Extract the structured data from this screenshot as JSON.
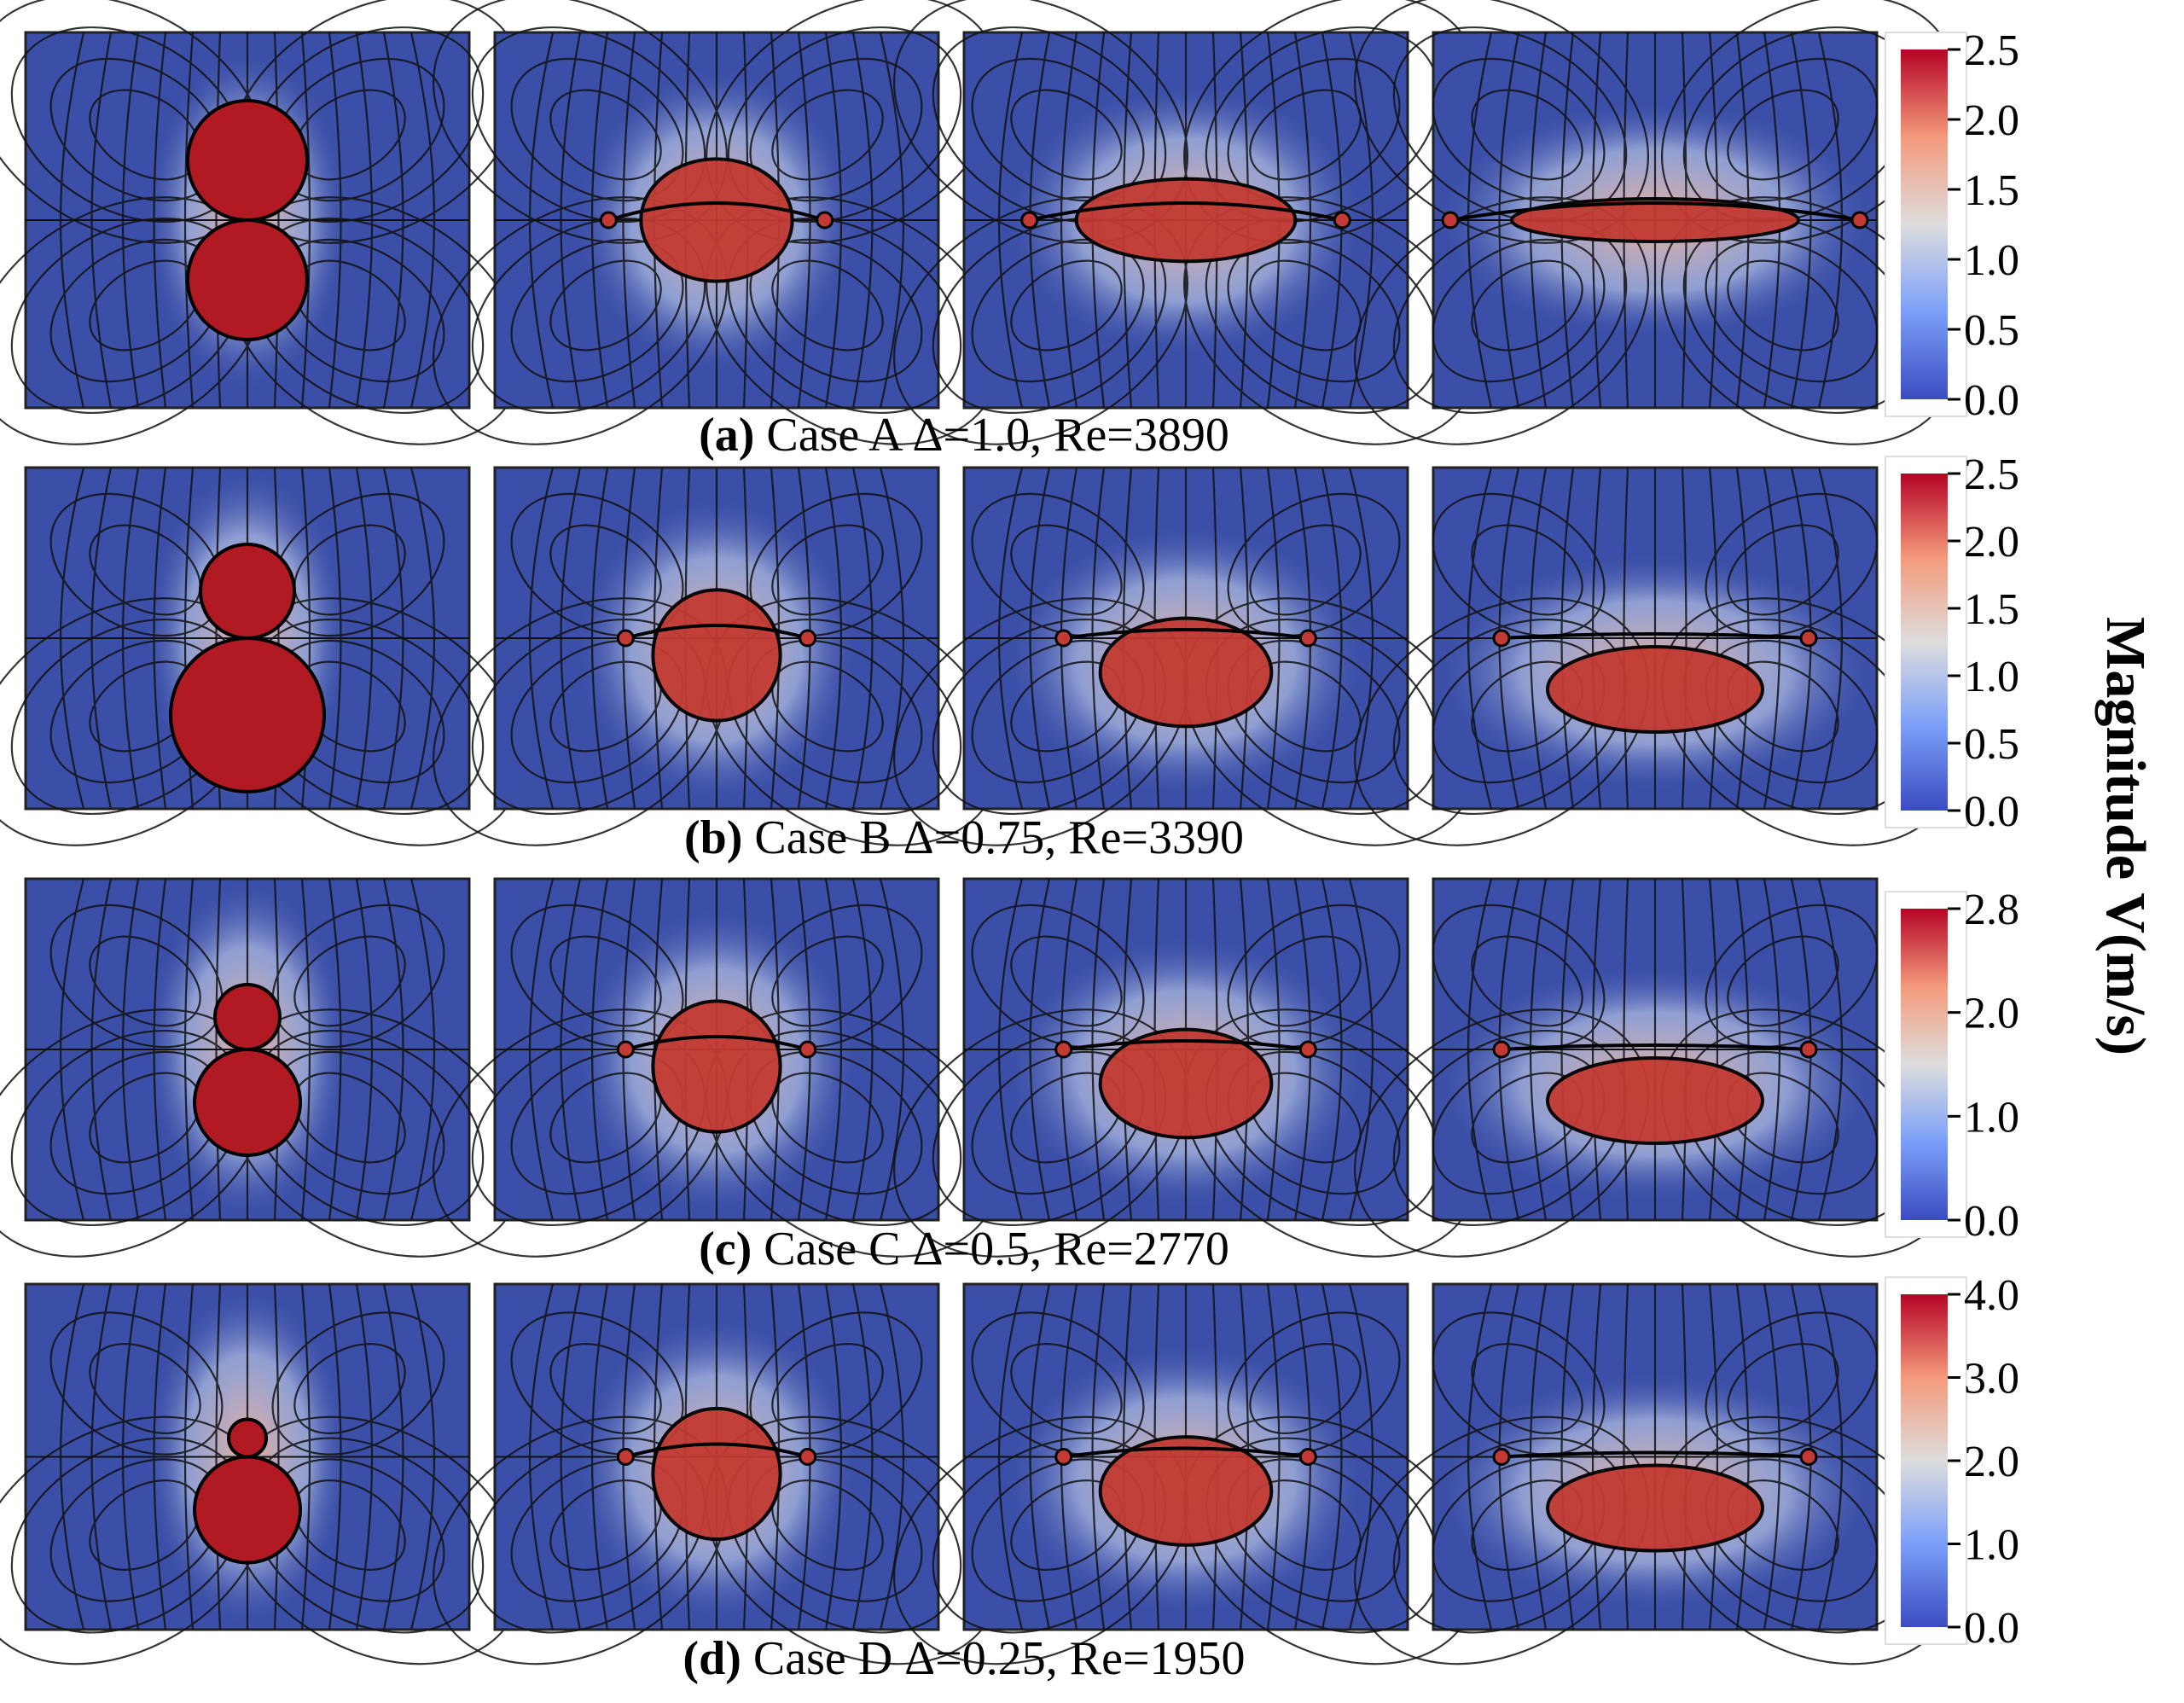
{
  "colorbar_title": "Magnitude V(m/s)",
  "colors": {
    "background_field": "#3b4fa8",
    "low": "#3a4cc0",
    "mid": "#dddddd",
    "high": "#b40426",
    "streamline": "#111111",
    "interface": "#000000"
  },
  "rows": [
    {
      "label": "(a)",
      "caption": "Case A Δ=1.0, Re=3890",
      "colorbar_ticks": [
        "2.5",
        "2.0",
        "1.5",
        "1.0",
        "0.5",
        "0.0"
      ],
      "vmax": 2.5,
      "bubble_shape": "symmetric"
    },
    {
      "label": "(b)",
      "caption": "Case B Δ=0.75, Re=3390",
      "colorbar_ticks": [
        "2.5",
        "2.0",
        "1.5",
        "1.0",
        "0.5",
        "0.0"
      ],
      "vmax": 2.5,
      "bubble_shape": "smaller-top"
    },
    {
      "label": "(c)",
      "caption": "Case C Δ=0.5, Re=2770",
      "colorbar_ticks": [
        "2.8",
        "2.0",
        "1.0",
        "0.0"
      ],
      "vmax": 2.8,
      "bubble_shape": "small-top"
    },
    {
      "label": "(d)",
      "caption": "Case D Δ=0.25, Re=1950",
      "colorbar_ticks": [
        "4.0",
        "3.0",
        "2.0",
        "1.0",
        "0.0"
      ],
      "vmax": 4.0,
      "bubble_shape": "tiny-top"
    }
  ]
}
